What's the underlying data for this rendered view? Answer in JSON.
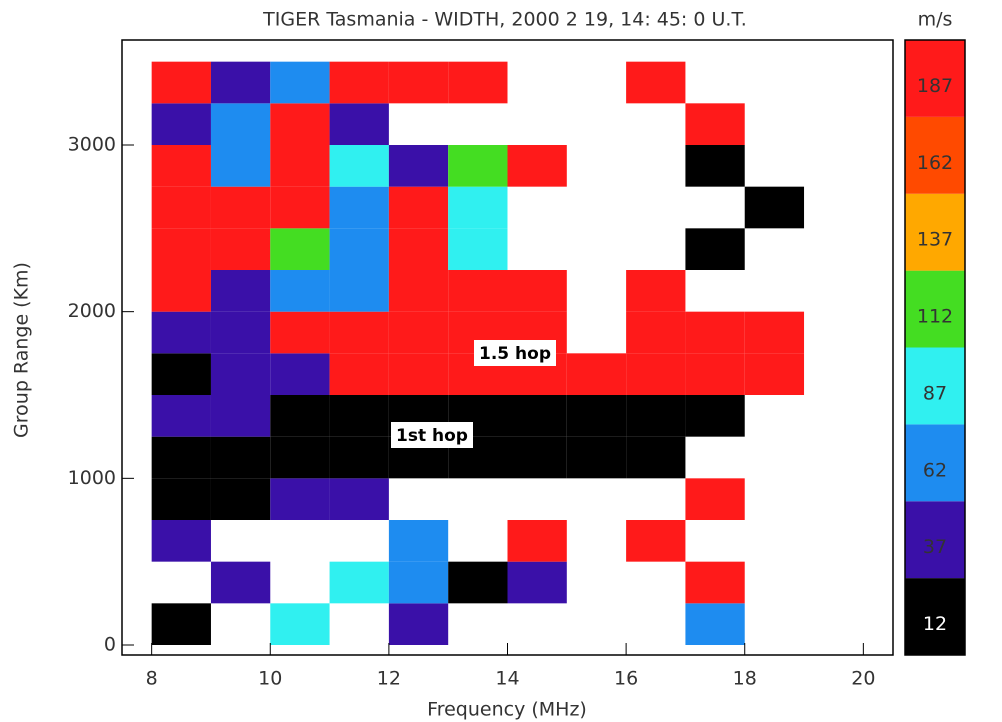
{
  "chart_data": {
    "type": "heatmap",
    "title": "TIGER Tasmania - WIDTH, 2000 2 19, 14: 45: 0 U.T.",
    "colorbar_label": "m/s",
    "xlabel": "Frequency (MHz)",
    "ylabel": "Group Range (Km)",
    "xlim": [
      7.5,
      20.5
    ],
    "ylim": [
      -60,
      3630
    ],
    "xticks": [
      8,
      10,
      12,
      14,
      16,
      18,
      20
    ],
    "yticks": [
      0,
      1000,
      2000,
      3000
    ],
    "x_bins": [
      8,
      9,
      10,
      11,
      12,
      13,
      14,
      15,
      16,
      17,
      18,
      19
    ],
    "y_bins": [
      0,
      250,
      500,
      750,
      1000,
      1250,
      1500,
      1750,
      2000,
      2250,
      2500,
      2750,
      3000,
      3250,
      3500
    ],
    "values": [
      [
        12,
        null,
        87,
        null,
        37,
        null,
        null,
        null,
        null,
        62,
        null
      ],
      [
        null,
        37,
        null,
        87,
        62,
        12,
        37,
        null,
        null,
        187,
        null
      ],
      [
        37,
        null,
        null,
        null,
        62,
        null,
        187,
        null,
        187,
        null,
        null
      ],
      [
        12,
        12,
        37,
        37,
        null,
        null,
        null,
        null,
        null,
        187,
        null
      ],
      [
        12,
        12,
        12,
        12,
        12,
        12,
        12,
        12,
        12,
        null,
        null
      ],
      [
        37,
        37,
        12,
        12,
        12,
        12,
        12,
        12,
        12,
        12,
        null
      ],
      [
        12,
        37,
        37,
        187,
        187,
        187,
        187,
        187,
        187,
        187,
        187
      ],
      [
        37,
        37,
        187,
        187,
        187,
        187,
        187,
        null,
        187,
        187,
        187
      ],
      [
        187,
        37,
        62,
        62,
        187,
        187,
        187,
        null,
        187,
        null,
        null
      ],
      [
        187,
        187,
        112,
        62,
        187,
        87,
        null,
        null,
        null,
        12,
        null
      ],
      [
        187,
        187,
        187,
        62,
        187,
        87,
        null,
        null,
        null,
        null,
        12
      ],
      [
        187,
        62,
        187,
        87,
        37,
        112,
        187,
        null,
        null,
        12,
        null
      ],
      [
        37,
        62,
        187,
        37,
        null,
        null,
        null,
        null,
        null,
        187,
        null
      ],
      [
        187,
        37,
        62,
        187,
        187,
        187,
        null,
        null,
        187,
        null,
        null
      ]
    ],
    "colorbar_levels": [
      12,
      37,
      62,
      87,
      112,
      137,
      162,
      187
    ],
    "colorbar_colors": [
      "#000000",
      "#3a10a8",
      "#1e8cf0",
      "#30f0f0",
      "#44dd22",
      "#ffa800",
      "#ff4a00",
      "#ff1a1a"
    ],
    "annotations": [
      "1.5 hop",
      "1st hop"
    ]
  }
}
